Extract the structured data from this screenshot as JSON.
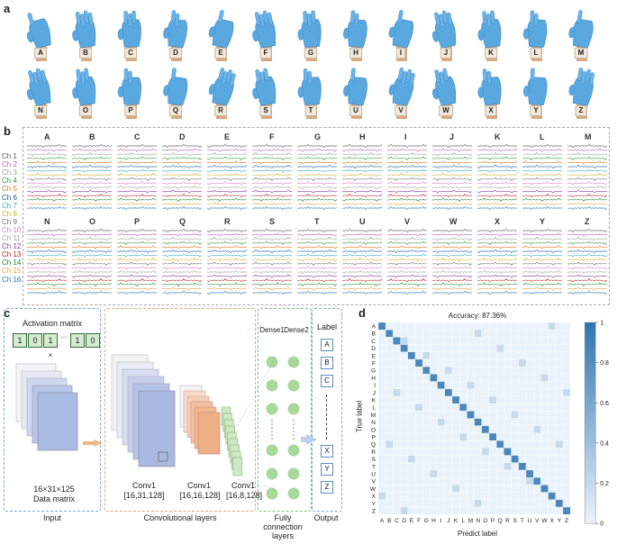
{
  "panel_labels": {
    "a": "a",
    "b": "b",
    "c": "c",
    "d": "d"
  },
  "panel_a": {
    "row1": [
      "A",
      "B",
      "C",
      "D",
      "E",
      "F",
      "G",
      "H",
      "I",
      "J",
      "K",
      "L",
      "M"
    ],
    "row2": [
      "N",
      "O",
      "P",
      "Q",
      "R",
      "S",
      "T",
      "U",
      "V",
      "W",
      "X",
      "Y",
      "Z"
    ]
  },
  "panel_b": {
    "row1_letters": [
      "A",
      "B",
      "C",
      "D",
      "E",
      "F",
      "G",
      "H",
      "I",
      "J",
      "K",
      "L",
      "M"
    ],
    "row2_letters": [
      "N",
      "O",
      "P",
      "Q",
      "R",
      "S",
      "T",
      "U",
      "V",
      "W",
      "X",
      "Y",
      "Z"
    ],
    "channels": [
      {
        "name": "Ch 1",
        "color": "#555555"
      },
      {
        "name": "Ch 2",
        "color": "#c060c0"
      },
      {
        "name": "Ch 3",
        "color": "#9a9a9a"
      },
      {
        "name": "Ch 4",
        "color": "#2a9a3a"
      },
      {
        "name": "Ch 5",
        "color": "#e07020"
      },
      {
        "name": "Ch 6",
        "color": "#1a5aa0"
      },
      {
        "name": "Ch 7",
        "color": "#40b0c0"
      },
      {
        "name": "Ch 8",
        "color": "#d0b020"
      },
      {
        "name": "Ch 9",
        "color": "#707070"
      },
      {
        "name": "Ch 10",
        "color": "#e080c0"
      },
      {
        "name": "Ch 11",
        "color": "#a0a0a0"
      },
      {
        "name": "Ch 12",
        "color": "#8040a0"
      },
      {
        "name": "Ch 13",
        "color": "#c02020"
      },
      {
        "name": "Ch 14",
        "color": "#208030"
      },
      {
        "name": "Ch 15",
        "color": "#f0a040"
      },
      {
        "name": "Ch 16",
        "color": "#2070b0"
      }
    ]
  },
  "panel_c": {
    "activation_title": "Activation matrix",
    "activation_bits": [
      "1",
      "0",
      "1",
      "1",
      "0"
    ],
    "multiply": "×",
    "data_matrix_dims": "16×31×125",
    "data_matrix_label": "Data matrix",
    "conv1": {
      "name": "Conv1",
      "dims": "[16,31,128]"
    },
    "conv2": {
      "name": "Conv1",
      "dims": "[16,16,128]"
    },
    "conv3": {
      "name": "Conv1",
      "dims": "[16,8,128]"
    },
    "dense1": "Dense1",
    "dense2": "Dense2",
    "label_title": "Label",
    "labels_top": [
      "A",
      "B",
      "C"
    ],
    "labels_bottom": [
      "X",
      "Y",
      "Z"
    ],
    "section_input": "Input",
    "section_conv": "Convolutional layers",
    "section_fc": "Fully connection layers",
    "section_output": "Output"
  },
  "panel_d": {
    "title": "Accuracy: 87.36%",
    "ylabel": "True label",
    "xlabel": "Predict label",
    "labels": [
      "A",
      "B",
      "C",
      "D",
      "E",
      "F",
      "G",
      "H",
      "I",
      "J",
      "K",
      "L",
      "M",
      "N",
      "O",
      "P",
      "Q",
      "R",
      "S",
      "T",
      "U",
      "V",
      "W",
      "X",
      "Y",
      "Z"
    ],
    "colorbar_ticks": [
      "1",
      "0.8",
      "0.6",
      "0.4",
      "0.2",
      "0"
    ],
    "cmap_low": "#eaf3fb",
    "cmap_high": "#2f74b0"
  }
}
